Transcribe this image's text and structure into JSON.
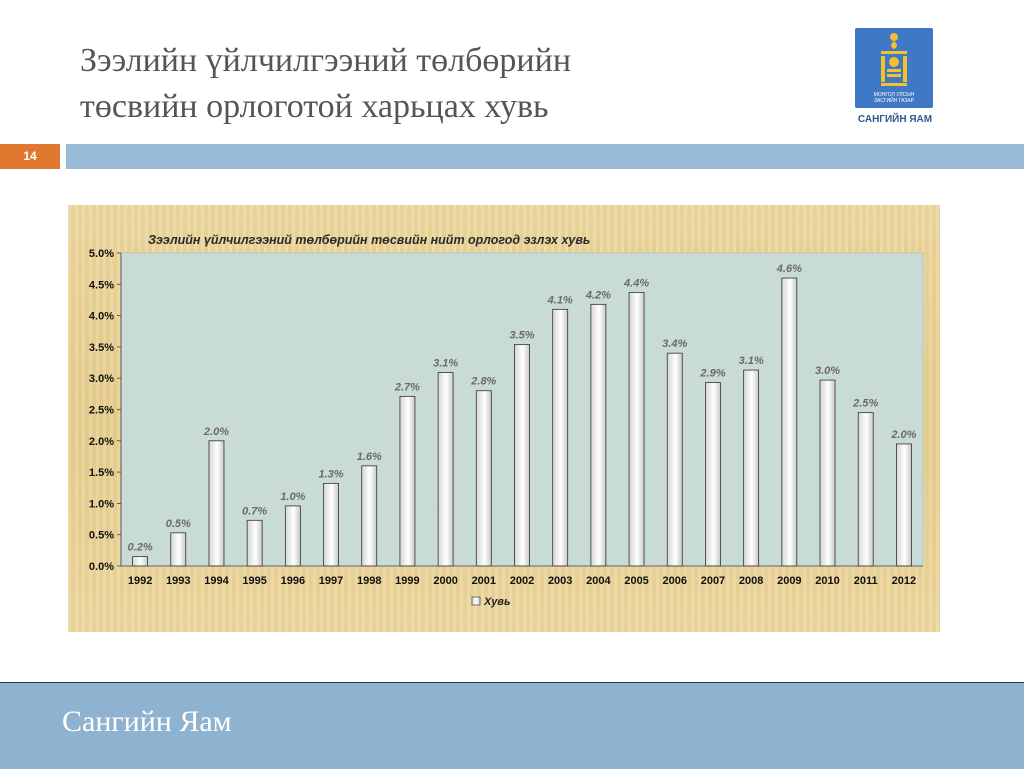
{
  "slide": {
    "title_line1": "Зээлийн үйлчилгээний төлбөрийн",
    "title_line2": "төсвийн орлоготой харьцах хувь",
    "page_number": "14",
    "logo_text_line1": "МОНГОЛ УЛСЫН",
    "logo_text_line2": "ЗАСГИЙН ГАЗАР",
    "logo_label": "САНГИЙН ЯАМ",
    "logo_icon": "soyombo-emblem-icon",
    "footer_text": "Сангийн Яам",
    "colors": {
      "accent_orange": "#e0782f",
      "bar_blue": "#98bad6",
      "logo_blue": "#3f78c5",
      "plot_background": "#c9dbd6",
      "panel_background": "#e8d091"
    }
  },
  "chart_data": {
    "type": "bar",
    "title": "Зээлийн үйлчилгээний төлбөрийн төсвийн нийт орлогод эзлэх хувь",
    "categories": [
      "1992",
      "1993",
      "1994",
      "1995",
      "1996",
      "1997",
      "1998",
      "1999",
      "2000",
      "2001",
      "2002",
      "2003",
      "2004",
      "2005",
      "2006",
      "2007",
      "2008",
      "2009",
      "2010",
      "2011",
      "2012"
    ],
    "series": [
      {
        "name": "Хувь",
        "values": [
          0.15,
          0.53,
          2.0,
          0.73,
          0.96,
          1.32,
          1.6,
          2.71,
          3.09,
          2.8,
          3.54,
          4.1,
          4.18,
          4.37,
          3.4,
          2.93,
          3.13,
          4.6,
          2.97,
          2.45,
          1.95
        ],
        "labels": [
          "0.2%",
          "0.5%",
          "2.0%",
          "0.7%",
          "1.0%",
          "1.3%",
          "1.6%",
          "2.7%",
          "3.1%",
          "2.8%",
          "3.5%",
          "4.1%",
          "4.2%",
          "4.4%",
          "3.4%",
          "2.9%",
          "3.1%",
          "4.6%",
          "3.0%",
          "2.5%",
          "2.0%"
        ]
      }
    ],
    "yticks": [
      0,
      0.5,
      1.0,
      1.5,
      2.0,
      2.5,
      3.0,
      3.5,
      4.0,
      4.5,
      5.0
    ],
    "ytick_labels": [
      "0.0%",
      "0.5%",
      "1.0%",
      "1.5%",
      "2.0%",
      "2.5%",
      "3.0%",
      "3.5%",
      "4.0%",
      "4.5%",
      "5.0%"
    ],
    "ylim": [
      0,
      5.0
    ],
    "grid": false,
    "legend": "bottom",
    "xlabel": "",
    "ylabel": ""
  }
}
